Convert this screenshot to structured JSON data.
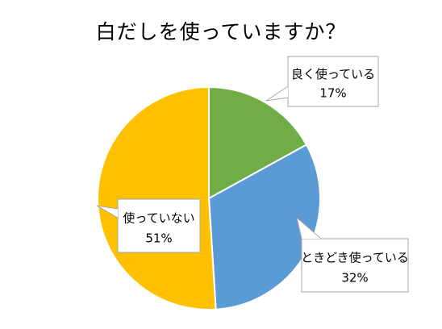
{
  "chart_data": {
    "type": "pie",
    "title": "白だしを使っていますか？",
    "slices": [
      {
        "label": "良く使っている",
        "value": 17,
        "value_label": "17%",
        "color": "#70AD47"
      },
      {
        "label": "ときどき使っている",
        "value": 32,
        "value_label": "32%",
        "color": "#5B9BD5"
      },
      {
        "label": "使っていない",
        "value": 51,
        "value_label": "51%",
        "color": "#FFC000"
      }
    ],
    "start_angle_deg": 0,
    "direction": "clockwise",
    "legend": "none",
    "data_labels": "callout-boxes"
  }
}
